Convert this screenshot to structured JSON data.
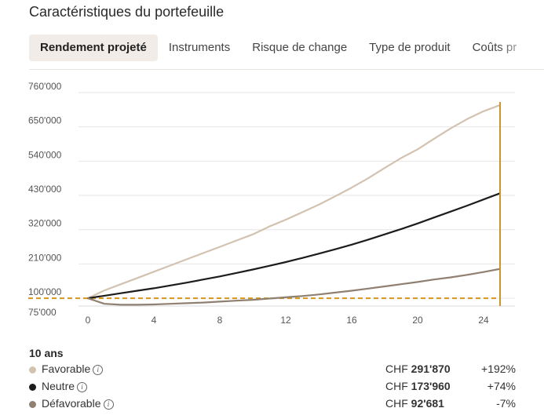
{
  "title": "Caractéristiques du portefeuille",
  "tabs": [
    {
      "label": "Rendement projeté",
      "active": true
    },
    {
      "label": "Instruments",
      "active": false
    },
    {
      "label": "Risque de change",
      "active": false
    },
    {
      "label": "Type de produit",
      "active": false
    },
    {
      "label": "Coûts pr",
      "active": false
    }
  ],
  "summary": {
    "period": "10 ans",
    "rows": [
      {
        "name": "Favorable",
        "currency": "CHF",
        "amount": "291'870",
        "change": "+192%",
        "color": "#d4c2b1"
      },
      {
        "name": "Neutre",
        "currency": "CHF",
        "amount": "173'960",
        "change": "+74%",
        "color": "#1e1c1b"
      },
      {
        "name": "Défavorable",
        "currency": "CHF",
        "amount": "92'681",
        "change": "-7%",
        "color": "#8f8072"
      }
    ],
    "info_icon": "info-circle-icon"
  },
  "chart_data": {
    "type": "line",
    "y_ticks": [
      "760'000",
      "650'000",
      "540'000",
      "430'000",
      "320'000",
      "210'000",
      "100'000",
      "75'000"
    ],
    "y_tick_values": [
      760000,
      650000,
      540000,
      430000,
      320000,
      210000,
      100000,
      75000
    ],
    "x_ticks": [
      "0",
      "4",
      "8",
      "12",
      "16",
      "20",
      "24"
    ],
    "x_tick_values": [
      0,
      4,
      8,
      12,
      16,
      20,
      24
    ],
    "xlim": [
      -0.5,
      25.5
    ],
    "ylim": [
      75000,
      760000
    ],
    "reference_value": 100000,
    "marker_x": 25,
    "grid": true,
    "colors": {
      "reference": "#d4961e",
      "marker": "#c9962a"
    },
    "series": [
      {
        "color": "#d4c2b1",
        "x": [
          0,
          1,
          2,
          3,
          4,
          5,
          6,
          7,
          8,
          9,
          10,
          11,
          12,
          13,
          14,
          15,
          16,
          17,
          18,
          19,
          20,
          21,
          22,
          23,
          24,
          25
        ],
        "values": [
          100000,
          125000,
          145000,
          165000,
          185000,
          205000,
          225000,
          245000,
          265000,
          285000,
          305000,
          330000,
          352000,
          376000,
          400000,
          427000,
          455000,
          485000,
          518000,
          550000,
          578000,
          612000,
          645000,
          675000,
          700000,
          720000
        ]
      },
      {
        "color": "#1e1c1b",
        "x": [
          0,
          1,
          2,
          3,
          4,
          5,
          6,
          7,
          8,
          9,
          10,
          11,
          12,
          13,
          14,
          15,
          16,
          17,
          18,
          19,
          20,
          21,
          22,
          23,
          24,
          25
        ],
        "values": [
          100000,
          108000,
          116000,
          124000,
          132000,
          141000,
          150000,
          160000,
          170000,
          181000,
          192000,
          204000,
          216000,
          229000,
          243000,
          257000,
          272000,
          288000,
          305000,
          322000,
          340000,
          359000,
          378000,
          397000,
          417000,
          437000
        ]
      },
      {
        "color": "#8f8072",
        "x": [
          0,
          1,
          2,
          3,
          4,
          5,
          6,
          7,
          8,
          9,
          10,
          11,
          12,
          13,
          14,
          15,
          16,
          17,
          18,
          19,
          20,
          21,
          22,
          23,
          24,
          25
        ],
        "values": [
          100000,
          82000,
          79000,
          79000,
          80000,
          82000,
          84000,
          86000,
          89000,
          92000,
          95000,
          99000,
          103000,
          107000,
          112000,
          118000,
          124000,
          131000,
          138000,
          145000,
          152000,
          160000,
          167000,
          175000,
          184000,
          194000
        ]
      }
    ]
  }
}
